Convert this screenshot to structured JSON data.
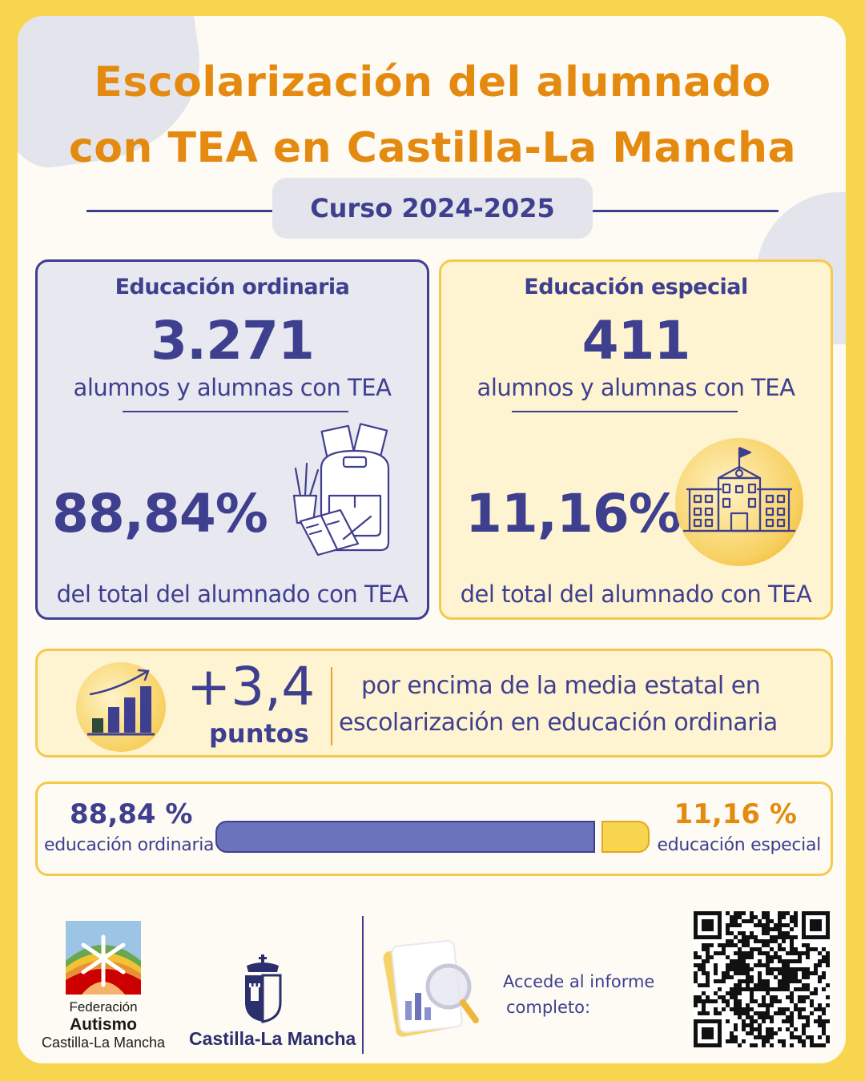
{
  "header": {
    "title_line1": "Escolarización del alumnado",
    "title_line2": "con TEA en Castilla-La Mancha",
    "course": "Curso 2024-2025"
  },
  "cards": [
    {
      "heading": "Educación ordinaria",
      "count": "3.271",
      "count_label": "alumnos y alumnas con TEA",
      "percent": "88,84%",
      "percent_label": "del total del alumnado con TEA",
      "icon": "school-supplies-icon"
    },
    {
      "heading": "Educación especial",
      "count": "411",
      "count_label": "alumnos y alumnas con TEA",
      "percent": "11,16%",
      "percent_label": "del total del alumnado con TEA",
      "icon": "school-building-icon"
    }
  ],
  "highlight": {
    "value": "+3,4",
    "unit": "puntos",
    "text_line1": "por encima de la media estatal en",
    "text_line2": "escolarización en educación ordinaria",
    "icon": "growth-chart-icon"
  },
  "distribution": {
    "ordinaria_value": "88,84 %",
    "ordinaria_label": "educación ordinaria",
    "especial_value": "11,16 %",
    "especial_label": "educación especial",
    "ordinaria_fraction": 0.8884,
    "especial_fraction": 0.1116,
    "colors": {
      "ordinaria": "#6b73bd",
      "especial": "#f8d54e"
    }
  },
  "footer": {
    "federation_line1": "Federación",
    "federation_line2": "Autismo",
    "federation_line3": "Castilla-La Mancha",
    "government": "Castilla-La Mancha",
    "report_line1": "Accede al informe",
    "report_line2": "completo:",
    "qr_icon": "qr-code-icon"
  },
  "colors": {
    "navy": "#3e3f8f",
    "orange": "#e58a10",
    "yellow": "#f8d54e",
    "cream": "#fef4d2"
  }
}
